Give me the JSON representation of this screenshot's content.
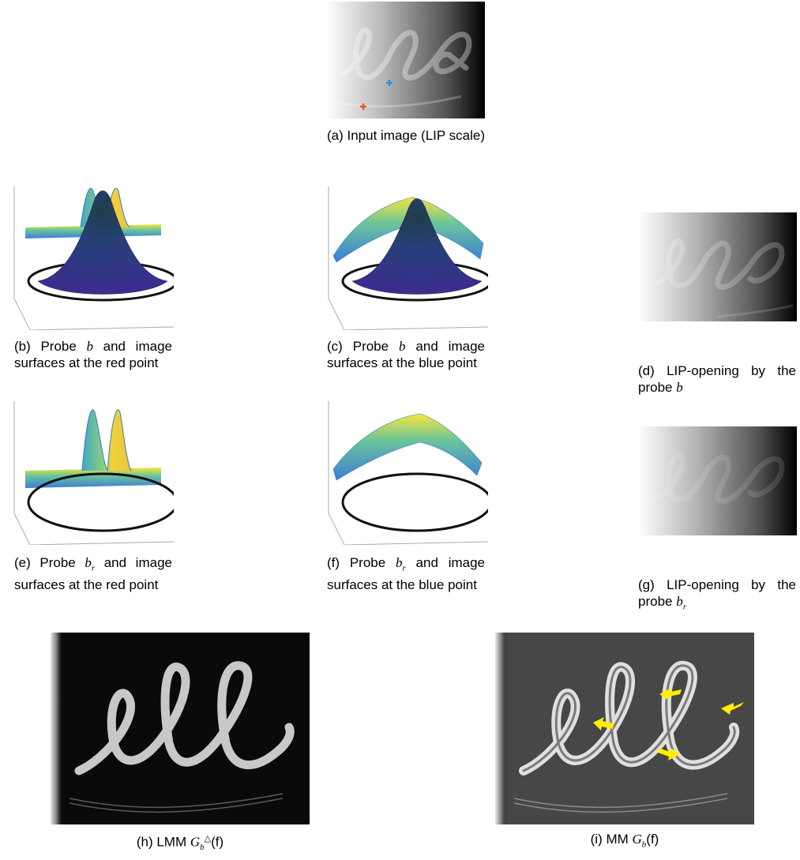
{
  "figure": {
    "panels": [
      {
        "id": "a",
        "caption": "(a) Input image (LIP scale)"
      },
      {
        "id": "b",
        "caption_pre": "(b) Probe ",
        "math": "b",
        "caption_post": " and image surfaces at the red point"
      },
      {
        "id": "c",
        "caption_pre": "(c) Probe ",
        "math": "b",
        "caption_post": " and image surfaces at the blue point"
      },
      {
        "id": "d",
        "caption_pre": "(d) LIP-opening by the probe ",
        "math": "b",
        "caption_post": ""
      },
      {
        "id": "e",
        "caption_pre": "(e) Probe ",
        "math": "b",
        "sub": "r",
        "caption_post": " and image surfaces at the red point"
      },
      {
        "id": "f",
        "caption_pre": "(f) Probe ",
        "math": "b",
        "sub": "r",
        "caption_post": " and image surfaces at the blue point"
      },
      {
        "id": "g",
        "caption_pre": "(g) LIP-opening by the probe ",
        "math": "b",
        "sub": "r",
        "caption_post": ""
      },
      {
        "id": "h",
        "caption_pre": "(h) LMM ",
        "math": "G",
        "sub": "b",
        "sup": "△",
        "caption_post": "(f)"
      },
      {
        "id": "i",
        "caption_pre": "(i) MM ",
        "math": "G",
        "sub": "b",
        "caption_post": "(f)"
      }
    ],
    "colors": {
      "red_point": "#e4572e",
      "blue_point": "#2a8fd8",
      "arrow": "#ffee00",
      "surface_low": "#2b2f8c",
      "surface_high": "#f4e84a"
    }
  }
}
